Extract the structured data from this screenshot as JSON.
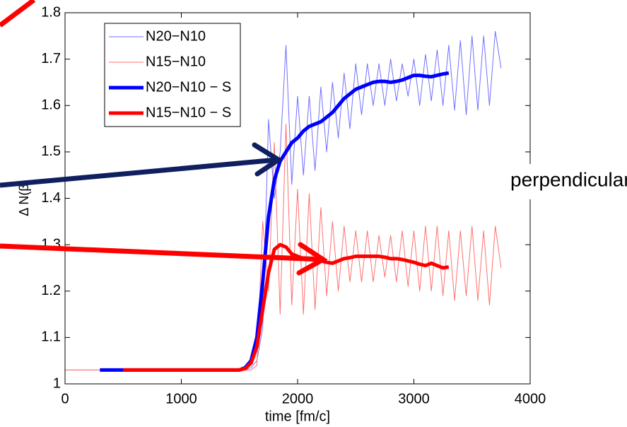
{
  "chart_data": {
    "type": "line",
    "xlabel": "time [fm/c]",
    "ylabel": "Δ N(β)",
    "annotation": "perpendicular",
    "x": [
      0,
      300,
      500,
      1000,
      1400,
      1450,
      1500,
      1550,
      1600,
      1650,
      1700,
      1750,
      1800,
      1850,
      1900,
      1950,
      2000,
      2050,
      2100,
      2150,
      2200,
      2250,
      2300,
      2350,
      2400,
      2450,
      2500,
      2550,
      2600,
      2650,
      2700,
      2750,
      2800,
      2850,
      2900,
      2950,
      3000,
      3050,
      3100,
      3150,
      3200,
      3250,
      3300,
      3350,
      3400,
      3450,
      3500,
      3550,
      3600,
      3650,
      3700,
      3750
    ],
    "series": [
      {
        "name": "N20−N10",
        "color": "#7070ff",
        "linewidth": 1,
        "values": [
          1.03,
          1.03,
          1.03,
          1.03,
          1.03,
          1.03,
          1.03,
          1.03,
          1.035,
          1.05,
          1.12,
          1.57,
          1.4,
          1.5,
          1.73,
          1.43,
          1.62,
          1.45,
          1.62,
          1.46,
          1.64,
          1.5,
          1.65,
          1.53,
          1.67,
          1.55,
          1.69,
          1.58,
          1.69,
          1.6,
          1.69,
          1.6,
          1.7,
          1.61,
          1.69,
          1.62,
          1.7,
          1.6,
          1.71,
          1.61,
          1.72,
          1.6,
          1.73,
          1.59,
          1.74,
          1.58,
          1.75,
          1.59,
          1.75,
          1.6,
          1.76,
          1.68
        ]
      },
      {
        "name": "N15−N10",
        "color": "#ff7070",
        "linewidth": 1,
        "values": [
          1.03,
          1.03,
          1.03,
          1.03,
          1.03,
          1.03,
          1.03,
          1.03,
          1.03,
          1.04,
          1.35,
          1.2,
          1.52,
          1.15,
          1.56,
          1.17,
          1.42,
          1.15,
          1.41,
          1.16,
          1.38,
          1.19,
          1.35,
          1.2,
          1.34,
          1.22,
          1.33,
          1.22,
          1.33,
          1.22,
          1.32,
          1.23,
          1.32,
          1.22,
          1.33,
          1.21,
          1.33,
          1.2,
          1.34,
          1.2,
          1.34,
          1.19,
          1.33,
          1.18,
          1.33,
          1.19,
          1.34,
          1.18,
          1.33,
          1.17,
          1.34,
          1.25
        ]
      },
      {
        "name": "N20−N10 − S",
        "color": "#0000ff",
        "linewidth": 5,
        "values": [
          null,
          1.03,
          1.03,
          1.03,
          1.03,
          1.03,
          1.03,
          1.035,
          1.05,
          1.1,
          1.22,
          1.36,
          1.44,
          1.48,
          1.5,
          1.52,
          1.53,
          1.545,
          1.555,
          1.56,
          1.565,
          1.575,
          1.585,
          1.6,
          1.615,
          1.625,
          1.635,
          1.64,
          1.645,
          1.65,
          1.652,
          1.652,
          1.65,
          1.652,
          1.655,
          1.66,
          1.665,
          1.665,
          1.663,
          1.662,
          1.665,
          1.668,
          1.67,
          null,
          null,
          null,
          null,
          null,
          null,
          null,
          null,
          null
        ]
      },
      {
        "name": "N15−N10 − S",
        "color": "#ff0000",
        "linewidth": 5,
        "values": [
          null,
          null,
          1.03,
          1.03,
          1.03,
          1.03,
          1.03,
          1.033,
          1.045,
          1.08,
          1.16,
          1.24,
          1.29,
          1.3,
          1.295,
          1.28,
          1.275,
          1.27,
          1.27,
          1.268,
          1.265,
          1.262,
          1.26,
          1.265,
          1.27,
          1.272,
          1.275,
          1.275,
          1.275,
          1.275,
          1.275,
          1.273,
          1.27,
          1.27,
          1.268,
          1.265,
          1.262,
          1.258,
          1.255,
          1.26,
          1.255,
          1.25,
          1.252,
          null,
          null,
          null,
          null,
          null,
          null,
          null,
          null,
          null
        ]
      }
    ],
    "xlim": [
      0,
      4000
    ],
    "xticks": [
      0,
      1000,
      2000,
      3000,
      4000
    ],
    "ylim": [
      1,
      1.8
    ],
    "yticks": [
      1,
      1.1,
      1.2,
      1.3,
      1.4,
      1.5,
      1.6,
      1.7,
      1.8
    ],
    "legend": "upper left"
  }
}
